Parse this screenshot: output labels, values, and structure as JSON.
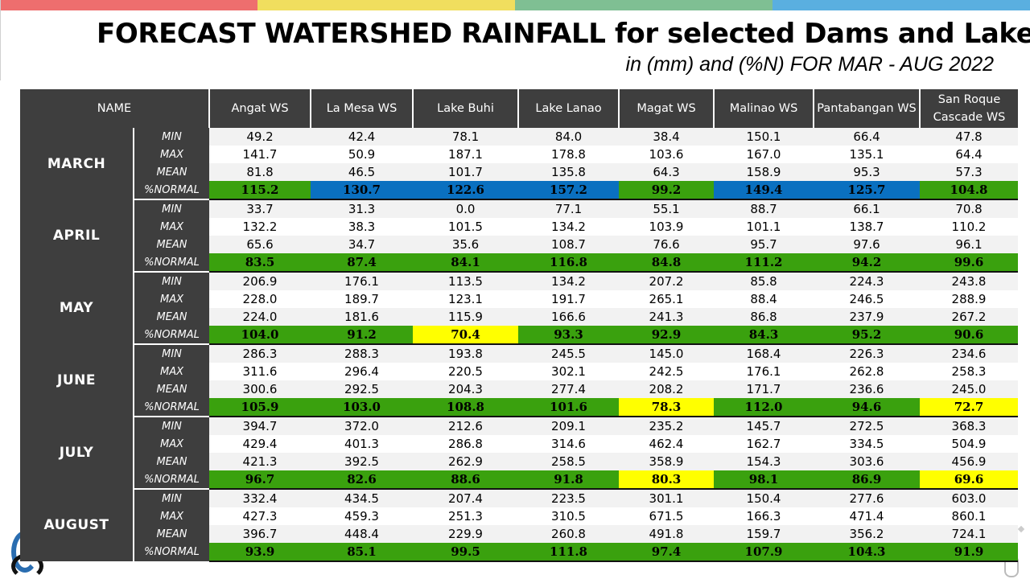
{
  "colors": {
    "stripes": [
      "#ee6e6e",
      "#f0de5e",
      "#7fbf93",
      "#5aafe0"
    ],
    "header_bg": "#3e3e3e",
    "above_normal": "#0a70c0",
    "near_normal": "#3aa10e",
    "below_normal": "#ffff00"
  },
  "title": "FORECAST WATERSHED RAINFALL  for selected Dams and Lakes",
  "subtitle": "in (mm) and (%N) FOR MAR - AUG 2022",
  "table": {
    "name_header": "NAME",
    "columns": [
      "Angat WS",
      "La Mesa WS",
      "Lake Buhi",
      "Lake Lanao",
      "Magat WS",
      "Malinao WS",
      "Pantabangan WS",
      "San Roque Cascade WS"
    ],
    "row_labels": [
      "MIN",
      "MAX",
      "MEAN",
      "%NORMAL"
    ],
    "months": [
      {
        "name": "MARCH",
        "rows": [
          [
            "49.2",
            "42.4",
            "78.1",
            "84.0",
            "38.4",
            "150.1",
            "66.4",
            "47.8"
          ],
          [
            "141.7",
            "50.9",
            "187.1",
            "178.8",
            "103.6",
            "167.0",
            "135.1",
            "64.4"
          ],
          [
            "81.8",
            "46.5",
            "101.7",
            "135.8",
            "64.3",
            "158.9",
            "95.3",
            "57.3"
          ],
          [
            "115.2",
            "130.7",
            "122.6",
            "157.2",
            "99.2",
            "149.4",
            "125.7",
            "104.8"
          ]
        ],
        "normal_colors": [
          "green",
          "blue",
          "blue",
          "blue",
          "green",
          "blue",
          "blue",
          "green"
        ]
      },
      {
        "name": "APRIL",
        "rows": [
          [
            "33.7",
            "31.3",
            "0.0",
            "77.1",
            "55.1",
            "88.7",
            "66.1",
            "70.8"
          ],
          [
            "132.2",
            "38.3",
            "101.5",
            "134.2",
            "103.9",
            "101.1",
            "138.7",
            "110.2"
          ],
          [
            "65.6",
            "34.7",
            "35.6",
            "108.7",
            "76.6",
            "95.7",
            "97.6",
            "96.1"
          ],
          [
            "83.5",
            "87.4",
            "84.1",
            "116.8",
            "84.8",
            "111.2",
            "94.2",
            "99.6"
          ]
        ],
        "normal_colors": [
          "green",
          "green",
          "green",
          "green",
          "green",
          "green",
          "green",
          "green"
        ]
      },
      {
        "name": "MAY",
        "rows": [
          [
            "206.9",
            "176.1",
            "113.5",
            "134.2",
            "207.2",
            "85.8",
            "224.3",
            "243.8"
          ],
          [
            "228.0",
            "189.7",
            "123.1",
            "191.7",
            "265.1",
            "88.4",
            "246.5",
            "288.9"
          ],
          [
            "224.0",
            "181.6",
            "115.9",
            "166.6",
            "241.3",
            "86.8",
            "237.9",
            "267.2"
          ],
          [
            "104.0",
            "91.2",
            "70.4",
            "93.3",
            "92.9",
            "84.3",
            "95.2",
            "90.6"
          ]
        ],
        "normal_colors": [
          "green",
          "green",
          "yellow",
          "green",
          "green",
          "green",
          "green",
          "green"
        ]
      },
      {
        "name": "JUNE",
        "rows": [
          [
            "286.3",
            "288.3",
            "193.8",
            "245.5",
            "145.0",
            "168.4",
            "226.3",
            "234.6"
          ],
          [
            "311.6",
            "296.4",
            "220.5",
            "302.1",
            "242.5",
            "176.1",
            "262.8",
            "258.3"
          ],
          [
            "300.6",
            "292.5",
            "204.3",
            "277.4",
            "208.2",
            "171.7",
            "236.6",
            "245.0"
          ],
          [
            "105.9",
            "103.0",
            "108.8",
            "101.6",
            "78.3",
            "112.0",
            "94.6",
            "72.7"
          ]
        ],
        "normal_colors": [
          "green",
          "green",
          "green",
          "green",
          "yellow",
          "green",
          "green",
          "yellow"
        ]
      },
      {
        "name": "JULY",
        "rows": [
          [
            "394.7",
            "372.0",
            "212.6",
            "209.1",
            "235.2",
            "145.7",
            "272.5",
            "368.3"
          ],
          [
            "429.4",
            "401.3",
            "286.8",
            "314.6",
            "462.4",
            "162.7",
            "334.5",
            "504.9"
          ],
          [
            "421.3",
            "392.5",
            "262.9",
            "258.5",
            "358.9",
            "154.3",
            "303.6",
            "456.9"
          ],
          [
            "96.7",
            "82.6",
            "88.6",
            "91.8",
            "80.3",
            "98.1",
            "86.9",
            "69.6"
          ]
        ],
        "normal_colors": [
          "green",
          "green",
          "green",
          "green",
          "yellow",
          "green",
          "green",
          "yellow"
        ]
      },
      {
        "name": "AUGUST",
        "rows": [
          [
            "332.4",
            "434.5",
            "207.4",
            "223.5",
            "301.1",
            "150.4",
            "277.6",
            "603.0"
          ],
          [
            "427.3",
            "459.3",
            "251.3",
            "310.5",
            "671.5",
            "166.3",
            "471.4",
            "860.1"
          ],
          [
            "396.7",
            "448.4",
            "229.9",
            "260.8",
            "491.8",
            "159.7",
            "356.2",
            "724.1"
          ],
          [
            "93.9",
            "85.1",
            "99.5",
            "111.8",
            "97.4",
            "107.9",
            "104.3",
            "91.9"
          ]
        ],
        "normal_colors": [
          "green",
          "green",
          "green",
          "green",
          "green",
          "green",
          "green",
          "green"
        ]
      }
    ]
  }
}
